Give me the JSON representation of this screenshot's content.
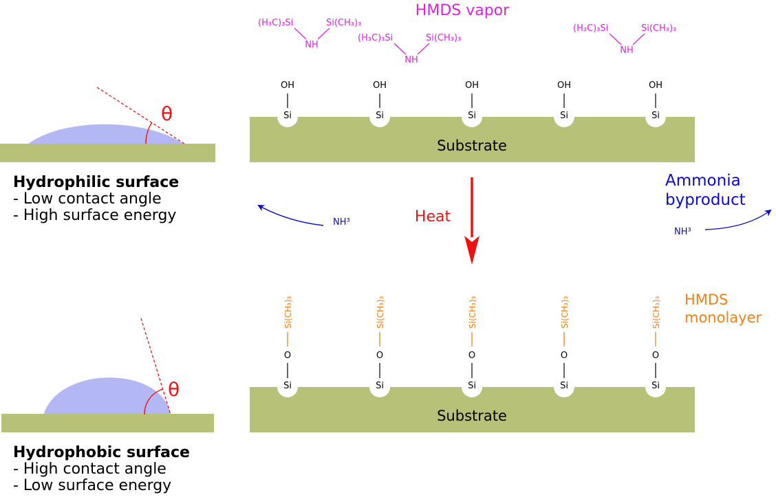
{
  "hmds_vapor": {
    "title": "HMDS vapor",
    "molecule": {
      "left_group": "(H₃C)₃Si",
      "right_group": "Si(CH₃)₃",
      "center": "NH"
    }
  },
  "substrate_label": "Substrate",
  "surface_top": {
    "group": "OH",
    "atom": "Si"
  },
  "surface_bottom": {
    "linker": "O",
    "atom": "Si",
    "cap": "Si(CH₃)₃"
  },
  "heat_label": "Heat",
  "ammonia": {
    "line1": "Ammonia",
    "line2": "byproduct",
    "formula": "NH³"
  },
  "monolayer": {
    "line1": "HMDS",
    "line2": "monolayer"
  },
  "theta": "θ",
  "hydrophilic": {
    "title": "Hydrophilic surface",
    "line1": "- Low contact angle",
    "line2": "- High surface energy"
  },
  "hydrophobic": {
    "title": "Hydrophobic surface",
    "line1": "- High contact angle",
    "line2": "- Low surface energy"
  },
  "colors": {
    "substrate": "#b8c178",
    "droplet": "#b3b8f5",
    "magenta": "#e020e0",
    "orange": "#f07f1a",
    "blue": "#0a0acc",
    "red": "#ee1111"
  }
}
